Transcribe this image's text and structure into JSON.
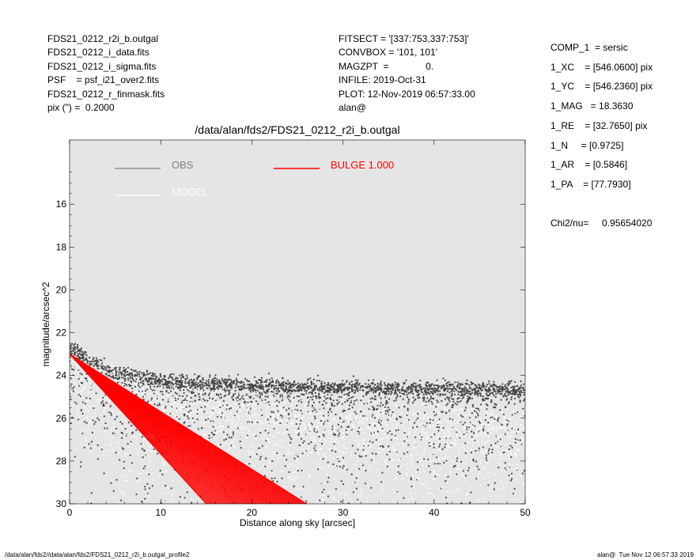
{
  "header": {
    "left": [
      "FDS21_0212_r2i_b.outgal",
      "FDS21_0212_i_data.fits",
      "FDS21_0212_i_sigma.fits",
      "PSF    = psf_i21_over2.fits",
      "FDS21_0212_r_finmask.fits",
      "pix (\") =  0.2000"
    ],
    "middle": [
      "FITSECT = '[337:753,337:753]'",
      "CONVBOX = '101, 101'",
      "MAGZPT  =              0.",
      "INFILE: 2019-Oct-31",
      "PLOT: 12-Nov-2019 06:57:33.00",
      "alan@"
    ],
    "right": [
      "COMP_1  = sersic",
      "1_XC    = [546.0600] pix",
      "1_YC    = [546.2360] pix",
      "1_MAG   = 18.3630",
      "1_RE    = [32.7650] pix",
      "1_N     = [0.9725]",
      "1_AR    = [0.5846]",
      "1_PA    = [77.7930]",
      "",
      "Chi2/nu=     0.95654020"
    ]
  },
  "footer": {
    "left": "/data/alan/fds2//data/alan/fds2/FDS21_0212_r2i_b.outgal_profile2",
    "right": "alan@  Tue Nov 12 06:57:33 2019"
  },
  "chart_data": {
    "type": "scatter",
    "title": "/data/alan/fds2/FDS21_0212_r2i_b.outgal",
    "xlabel": "Distance along sky [arcsec]",
    "ylabel": "magnitude/arcsec^2",
    "xlim": [
      0,
      50
    ],
    "ylim": [
      30,
      13.0
    ],
    "y_inverted": true,
    "x_ticks": [
      0,
      10,
      20,
      30,
      40,
      50
    ],
    "y_ticks": [
      16,
      18,
      20,
      22,
      24,
      26,
      28,
      30
    ],
    "background_color": "#e5e5e5",
    "grid": false,
    "legend": [
      {
        "label": "OBS",
        "color": "#808080"
      },
      {
        "label": "MODEL",
        "color": "#ffffff"
      },
      {
        "label": "BULGE  1.000",
        "color": "#ff0000"
      }
    ],
    "series": [
      {
        "name": "OBS",
        "color": "#444444",
        "description_points": [
          [
            0,
            22.7
          ],
          [
            2,
            23.3
          ],
          [
            5,
            23.9
          ],
          [
            10,
            24.3
          ],
          [
            20,
            24.5
          ],
          [
            30,
            24.6
          ],
          [
            40,
            24.6
          ],
          [
            50,
            24.7
          ]
        ]
      },
      {
        "name": "MODEL",
        "color": "#ffffff",
        "description_points": [
          [
            0,
            23.0
          ],
          [
            5,
            24.2
          ],
          [
            10,
            25.0
          ],
          [
            20,
            25.5
          ],
          [
            30,
            25.8
          ],
          [
            40,
            26.0
          ],
          [
            50,
            26.2
          ]
        ]
      },
      {
        "name": "BULGE  1.000",
        "color": "#ff0000",
        "band_upper": [
          [
            0,
            23.0
          ],
          [
            26,
            30.0
          ]
        ],
        "band_lower": [
          [
            0,
            23.0
          ],
          [
            15,
            30.0
          ]
        ]
      }
    ]
  }
}
